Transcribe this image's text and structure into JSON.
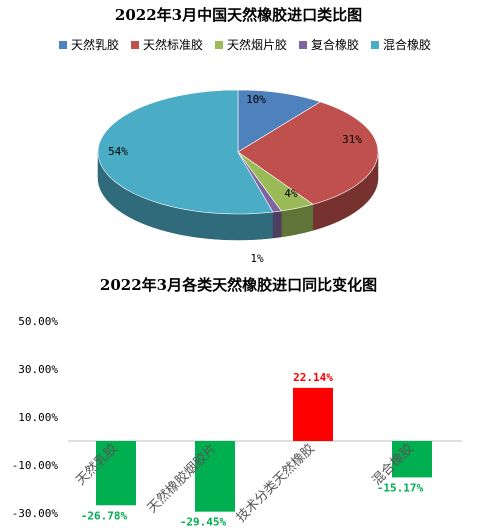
{
  "chart_data": [
    {
      "type": "pie",
      "title": "2022年3月中国天然橡胶进口类比图",
      "legend_position": "top",
      "categories": [
        "天然乳胶",
        "天然标准胶",
        "天然烟片胶",
        "复合橡胶",
        "混合橡胶"
      ],
      "values": [
        10,
        31,
        4,
        1,
        54
      ],
      "labels": [
        "10%",
        "31%",
        "4%",
        "1%",
        "54%"
      ],
      "colors": [
        "#4f81bd",
        "#c0504d",
        "#9bbb59",
        "#8064a2",
        "#4bacc6"
      ],
      "style": "3d"
    },
    {
      "type": "bar",
      "title": "2022年3月各类天然橡胶进口同比变化图",
      "categories": [
        "天然乳胶",
        "天然橡胶烟胶片",
        "技术分类天然橡胶",
        "混合橡胶"
      ],
      "values": [
        -26.78,
        -29.45,
        22.14,
        -15.17
      ],
      "labels": [
        "-26.78%",
        "-29.45%",
        "22.14%",
        "-15.17%"
      ],
      "colors": [
        "#00b050",
        "#00b050",
        "#ff0000",
        "#00b050"
      ],
      "ylim": [
        -30,
        50
      ],
      "yticks": [
        "50.00%",
        "30.00%",
        "10.00%",
        "-10.00%",
        "-30.00%"
      ],
      "ytick_values": [
        50,
        30,
        10,
        -10,
        -30
      ],
      "grid": false
    }
  ]
}
